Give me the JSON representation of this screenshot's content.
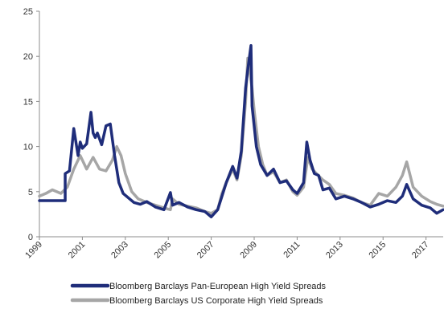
{
  "chart_data": {
    "type": "line",
    "title": "",
    "xlabel": "",
    "ylabel": "",
    "xlim": [
      1999,
      2017.8
    ],
    "ylim": [
      0,
      25
    ],
    "x_ticks": [
      "1999",
      "2001",
      "2003",
      "2005",
      "2007",
      "2009",
      "2011",
      "2013",
      "2015",
      "2017"
    ],
    "y_ticks": [
      "0",
      "5",
      "10",
      "15",
      "20",
      "25"
    ],
    "grid": false,
    "legend_position": "bottom",
    "series": [
      {
        "name": "Bloomberg Barclays Pan-European High Yield Spreads",
        "color": "#1f2d7a",
        "x": [
          1999.0,
          2000.2,
          2000.2,
          2000.4,
          2000.6,
          2000.8,
          2000.9,
          2001.0,
          2001.2,
          2001.4,
          2001.5,
          2001.6,
          2001.7,
          2001.9,
          2002.1,
          2002.3,
          2002.5,
          2002.7,
          2002.9,
          2003.1,
          2003.4,
          2003.7,
          2004.0,
          2004.4,
          2004.8,
          2005.1,
          2005.2,
          2005.5,
          2005.9,
          2006.3,
          2006.7,
          2007.0,
          2007.3,
          2007.5,
          2007.7,
          2008.0,
          2008.2,
          2008.4,
          2008.6,
          2008.7,
          2008.85,
          2008.9,
          2009.1,
          2009.3,
          2009.6,
          2009.9,
          2010.2,
          2010.5,
          2010.8,
          2011.0,
          2011.3,
          2011.45,
          2011.6,
          2011.8,
          2012.0,
          2012.2,
          2012.5,
          2012.8,
          2013.2,
          2013.6,
          2014.0,
          2014.4,
          2014.8,
          2015.2,
          2015.6,
          2015.9,
          2016.1,
          2016.4,
          2016.8,
          2017.2,
          2017.5,
          2017.8
        ],
        "y": [
          4.0,
          4.0,
          7.0,
          7.3,
          12.0,
          9.0,
          10.5,
          9.8,
          10.3,
          13.8,
          11.5,
          11.0,
          11.5,
          10.2,
          12.3,
          12.5,
          9.0,
          6.0,
          4.8,
          4.4,
          3.8,
          3.6,
          3.9,
          3.3,
          3.0,
          4.9,
          3.5,
          3.8,
          3.3,
          3.0,
          2.8,
          2.2,
          3.0,
          4.5,
          6.0,
          7.8,
          6.5,
          9.5,
          16.5,
          18.5,
          21.2,
          14.5,
          10.0,
          8.0,
          6.8,
          7.5,
          6.0,
          6.2,
          5.2,
          4.8,
          6.0,
          10.5,
          8.5,
          7.0,
          6.8,
          5.2,
          5.4,
          4.2,
          4.5,
          4.2,
          3.8,
          3.3,
          3.6,
          4.0,
          3.8,
          4.5,
          5.8,
          4.2,
          3.5,
          3.2,
          2.6,
          3.0
        ]
      },
      {
        "name": "Bloomberg Barclays US Corporate High Yield Spreads",
        "color": "#a6a6a6",
        "x": [
          1999.0,
          1999.3,
          1999.6,
          2000.0,
          2000.3,
          2000.6,
          2000.9,
          2001.2,
          2001.5,
          2001.8,
          2002.1,
          2002.4,
          2002.6,
          2002.8,
          2003.0,
          2003.3,
          2003.6,
          2004.0,
          2004.4,
          2004.8,
          2005.1,
          2005.2,
          2005.5,
          2005.9,
          2006.3,
          2006.7,
          2007.0,
          2007.3,
          2007.5,
          2007.7,
          2008.0,
          2008.2,
          2008.4,
          2008.6,
          2008.7,
          2008.9,
          2009.0,
          2009.2,
          2009.4,
          2009.6,
          2009.9,
          2010.2,
          2010.5,
          2010.8,
          2011.0,
          2011.3,
          2011.5,
          2011.7,
          2011.9,
          2012.2,
          2012.5,
          2012.8,
          2013.2,
          2013.6,
          2014.0,
          2014.4,
          2014.8,
          2015.2,
          2015.6,
          2015.9,
          2016.1,
          2016.4,
          2016.8,
          2017.2,
          2017.5,
          2017.8
        ],
        "y": [
          4.5,
          4.8,
          5.2,
          4.8,
          5.5,
          7.5,
          9.0,
          7.5,
          8.8,
          7.5,
          7.3,
          8.5,
          10.0,
          9.0,
          7.0,
          5.0,
          4.2,
          3.8,
          3.5,
          3.2,
          3.0,
          4.2,
          3.6,
          3.4,
          3.2,
          2.8,
          2.6,
          3.0,
          4.8,
          6.0,
          7.5,
          6.3,
          9.0,
          15.0,
          19.8,
          16.5,
          14.0,
          10.0,
          8.0,
          6.8,
          7.2,
          6.0,
          6.3,
          5.0,
          4.6,
          5.5,
          8.8,
          7.5,
          7.0,
          6.3,
          5.8,
          4.8,
          4.6,
          4.3,
          3.8,
          3.5,
          4.8,
          4.5,
          5.5,
          6.8,
          8.3,
          5.5,
          4.5,
          3.9,
          3.6,
          3.4
        ]
      }
    ]
  }
}
